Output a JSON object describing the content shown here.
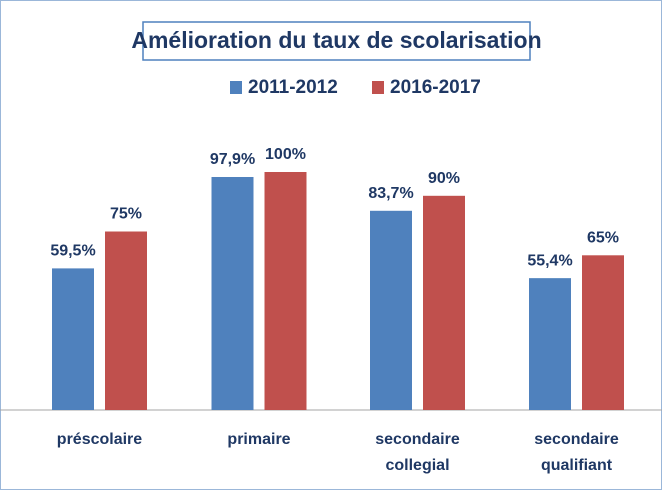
{
  "chart_data": {
    "type": "bar",
    "title": "Amélioration du taux de scolarisation",
    "categories": [
      "préscolaire",
      "primaire",
      "secondaire collegial",
      "secondaire qualifiant"
    ],
    "series": [
      {
        "name": "2011-2012",
        "color": "#4f81bd",
        "values": [
          59.5,
          97.9,
          83.7,
          55.4
        ],
        "value_labels": [
          "59,5%",
          "97,9%",
          "83,7%",
          "55,4%"
        ]
      },
      {
        "name": "2016-2017",
        "color": "#c0504d",
        "values": [
          75,
          100,
          90,
          65
        ],
        "value_labels": [
          "75%",
          "100%",
          "90%",
          "65%"
        ]
      }
    ],
    "ylim": [
      0,
      100
    ]
  }
}
